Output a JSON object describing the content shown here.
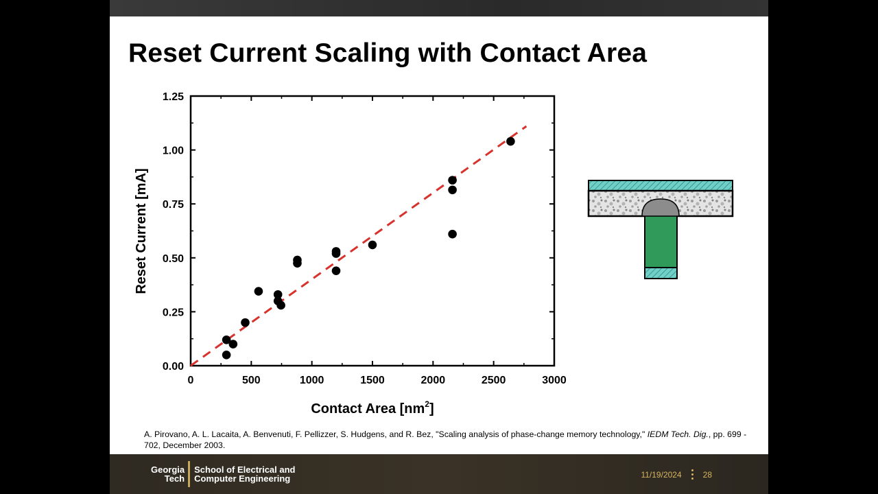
{
  "slide": {
    "title": "Reset Current Scaling with Contact Area",
    "citation_pre": "A. Pirovano, A. L. Lacaita, A. Benvenuti, F. Pellizzer, S. Hudgens, and R. Bez, \"Scaling analysis of phase-change memory technology,\" ",
    "citation_journal": "IEDM Tech. Dig.",
    "citation_post": ", pp. 699 - 702, December 2003."
  },
  "footer": {
    "logo_line1": "Georgia",
    "logo_line2": "Tech",
    "dept_line1": "School of Electrical and",
    "dept_line2": "Computer Engineering",
    "date": "11/19/2024",
    "page": "28"
  },
  "chart_data": {
    "type": "scatter",
    "xlabel": "Contact Area [nm",
    "xlabel_sup": "2",
    "xlabel_end": "]",
    "ylabel": "Reset Current [mA]",
    "xlim": [
      0,
      3000
    ],
    "ylim": [
      0,
      1.25
    ],
    "xticks": [
      0,
      500,
      1000,
      1500,
      2000,
      2500,
      3000
    ],
    "xtick_labels": [
      "0",
      "500",
      "1000",
      "1500",
      "2000",
      "2500",
      "3000"
    ],
    "yticks": [
      0,
      0.25,
      0.5,
      0.75,
      1.0,
      1.25
    ],
    "ytick_labels": [
      "0.00",
      "0.25",
      "0.50",
      "0.75",
      "1.00",
      "1.25"
    ],
    "points": [
      {
        "x": 295,
        "y": 0.12
      },
      {
        "x": 295,
        "y": 0.05
      },
      {
        "x": 350,
        "y": 0.1
      },
      {
        "x": 450,
        "y": 0.2
      },
      {
        "x": 560,
        "y": 0.345
      },
      {
        "x": 720,
        "y": 0.33
      },
      {
        "x": 720,
        "y": 0.3
      },
      {
        "x": 745,
        "y": 0.28
      },
      {
        "x": 880,
        "y": 0.49
      },
      {
        "x": 880,
        "y": 0.475
      },
      {
        "x": 1200,
        "y": 0.53
      },
      {
        "x": 1200,
        "y": 0.52
      },
      {
        "x": 1200,
        "y": 0.44
      },
      {
        "x": 1500,
        "y": 0.56
      },
      {
        "x": 2160,
        "y": 0.86
      },
      {
        "x": 2160,
        "y": 0.815
      },
      {
        "x": 2160,
        "y": 0.61
      },
      {
        "x": 2640,
        "y": 1.04
      }
    ],
    "fit_line": {
      "x": [
        0,
        2770
      ],
      "y": [
        0,
        1.11
      ],
      "style": "dashed",
      "color": "#d8322c"
    },
    "grid": false,
    "marker_color": "#000000"
  },
  "colors": {
    "electrode": "#5fc6c0",
    "heater": "#2f9a5a",
    "cell_fill": "#e6e6e6",
    "dome": "#8c8c8c"
  }
}
